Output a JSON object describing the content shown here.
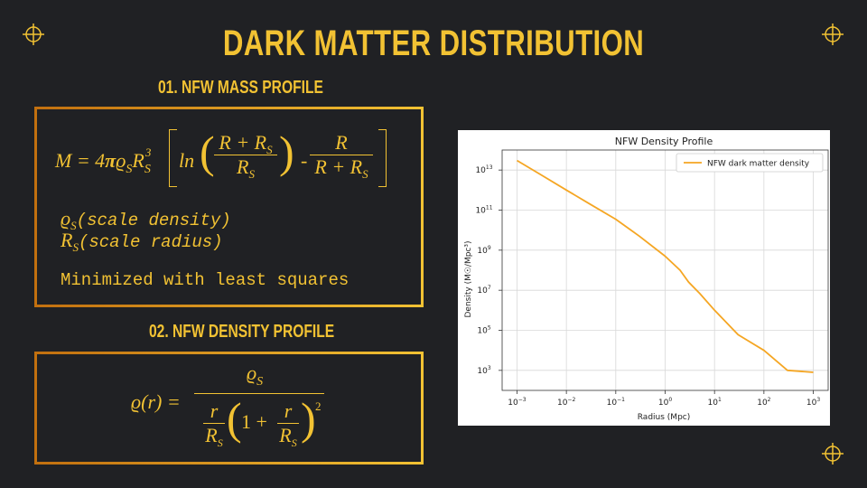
{
  "slide": {
    "title": "DARK MATTER DISTRIBUTION",
    "section1_heading": "01. NFW MASS PROFILE",
    "section2_heading": "02. NFW DENSITY PROFILE"
  },
  "mass_formula": {
    "lhs": "M = 4",
    "pi": "π",
    "rho": "ϱ",
    "sub_s": "S",
    "R": "R",
    "cube": "3",
    "ln": "ln",
    "frac1_num": "R + R",
    "frac1_den": "R",
    "minus": "-",
    "frac2_num": "R",
    "frac2_den": "R + R"
  },
  "notes": {
    "rho_symbol": "ϱ",
    "rho_sub": "S",
    "rho_desc": "(scale density)",
    "r_symbol": "R",
    "r_sub": "S",
    "r_desc": "(scale radius)",
    "method": "Minimized with least squares"
  },
  "density_formula": {
    "lhs": "ϱ(r) =",
    "num": "ϱ",
    "num_sub": "S",
    "r": "r",
    "R": "R",
    "sub_s": "S",
    "one_plus": "1 +",
    "square": "2"
  },
  "chart_data": {
    "type": "line",
    "title": "NFW Density Profile",
    "xlabel": "Radius (Mpc)",
    "ylabel": "Density (M☉/Mpc³)",
    "xscale": "log",
    "yscale": "log",
    "xlim": [
      0.0005,
      2000
    ],
    "ylim": [
      100,
      100000000000000.0
    ],
    "grid": true,
    "legend_position": "top-right",
    "xticks": [
      {
        "base": "10",
        "exp": "−3",
        "v": 0.001
      },
      {
        "base": "10",
        "exp": "−2",
        "v": 0.01
      },
      {
        "base": "10",
        "exp": "−1",
        "v": 0.1
      },
      {
        "base": "10",
        "exp": "0",
        "v": 1
      },
      {
        "base": "10",
        "exp": "1",
        "v": 10
      },
      {
        "base": "10",
        "exp": "2",
        "v": 100
      },
      {
        "base": "10",
        "exp": "3",
        "v": 1000
      }
    ],
    "yticks": [
      {
        "base": "10",
        "exp": "3",
        "v": 1000.0
      },
      {
        "base": "10",
        "exp": "5",
        "v": 100000.0
      },
      {
        "base": "10",
        "exp": "7",
        "v": 10000000.0
      },
      {
        "base": "10",
        "exp": "9",
        "v": 1000000000.0
      },
      {
        "base": "10",
        "exp": "11",
        "v": 100000000000.0
      },
      {
        "base": "10",
        "exp": "13",
        "v": 10000000000000.0
      }
    ],
    "series": [
      {
        "name": "NFW dark matter density",
        "color": "#f5a623",
        "x": [
          0.001,
          0.003,
          0.01,
          0.03,
          0.1,
          0.3,
          1,
          2,
          3,
          5,
          10,
          30,
          100,
          300,
          1000
        ],
        "y": [
          30000000000000.0,
          6000000000000.0,
          1000000000000.0,
          200000000000.0,
          35000000000.0,
          5000000000.0,
          500000000.0,
          100000000.0,
          25000000.0,
          7000000.0,
          1000000.0,
          60000.0,
          10000.0,
          1000.0,
          800.0
        ]
      }
    ]
  }
}
